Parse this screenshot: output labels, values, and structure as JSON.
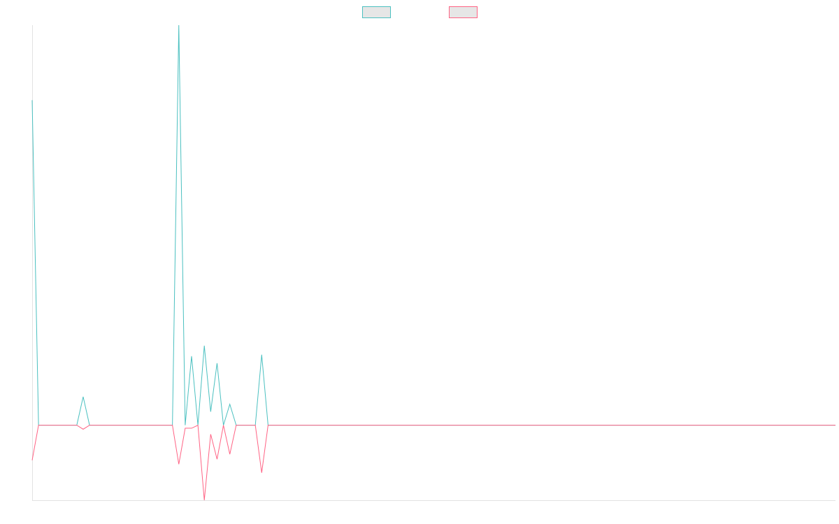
{
  "chart_data": {
    "type": "line",
    "title": "",
    "xlabel": "",
    "ylabel": "",
    "grid": false,
    "legend_position": "top-center",
    "x": [
      0,
      1,
      2,
      3,
      4,
      5,
      6,
      7,
      8,
      9,
      10,
      11,
      12,
      13,
      14,
      15,
      16,
      17,
      18,
      19,
      20,
      21,
      22,
      23,
      24,
      25,
      26,
      27,
      28,
      29,
      30,
      31,
      32,
      33,
      34,
      35,
      36,
      37,
      38,
      39,
      40,
      41,
      42,
      43,
      44,
      45,
      46,
      47,
      48,
      49,
      50,
      51,
      52,
      53,
      54,
      55,
      56,
      57,
      58,
      59,
      60,
      61,
      62,
      63,
      64,
      65,
      66,
      67,
      68,
      69,
      70,
      71,
      72,
      73,
      74,
      75,
      76,
      77,
      78,
      79,
      80,
      81,
      82,
      83,
      84,
      85,
      86,
      87,
      88,
      89,
      90,
      91,
      92,
      93,
      94,
      95,
      96,
      97,
      98,
      99,
      100,
      101,
      102,
      103,
      104,
      105,
      106,
      107,
      108,
      109,
      110,
      111,
      112,
      113,
      114,
      115,
      116,
      117,
      118,
      119,
      120,
      121,
      122,
      123,
      124,
      125,
      126
    ],
    "ylim": [
      -15,
      80
    ],
    "series": [
      {
        "color": "#4bc0c0",
        "values": [
          65,
          0,
          0,
          0,
          0,
          0,
          0,
          0,
          5.7,
          0,
          0,
          0,
          0,
          0,
          0,
          0,
          0,
          0,
          0,
          0,
          0,
          0,
          0,
          80,
          0,
          13.8,
          0,
          15.9,
          2.7,
          12.4,
          0,
          4.2,
          0,
          0,
          0,
          0,
          14.1,
          0,
          0,
          0,
          0,
          0,
          0,
          0,
          0,
          0,
          0,
          0,
          0,
          0,
          0,
          0,
          0,
          0,
          0,
          0,
          0,
          0,
          0,
          0,
          0,
          0,
          0,
          0,
          0,
          0,
          0,
          0,
          0,
          0,
          0,
          0,
          0,
          0,
          0,
          0,
          0,
          0,
          0,
          0,
          0,
          0,
          0,
          0,
          0,
          0,
          0,
          0,
          0,
          0,
          0,
          0,
          0,
          0,
          0,
          0,
          0,
          0,
          0,
          0,
          0,
          0,
          0,
          0,
          0,
          0,
          0,
          0,
          0,
          0,
          0,
          0,
          0,
          0,
          0,
          0,
          0,
          0,
          0,
          0,
          0,
          0,
          0,
          0,
          0,
          0,
          0
        ]
      },
      {
        "color": "#ff6384",
        "values": [
          -7,
          0,
          0,
          0,
          0,
          0,
          0,
          0,
          -0.8,
          0,
          0,
          0,
          0,
          0,
          0,
          0,
          0,
          0,
          0,
          0,
          0,
          0,
          0,
          -7.8,
          -0.6,
          -0.6,
          0,
          -15,
          -1.8,
          -6.8,
          0,
          -5.8,
          0,
          0,
          0,
          0,
          -9.5,
          0,
          0,
          0,
          0,
          0,
          0,
          0,
          0,
          0,
          0,
          0,
          0,
          0,
          0,
          0,
          0,
          0,
          0,
          0,
          0,
          0,
          0,
          0,
          0,
          0,
          0,
          0,
          0,
          0,
          0,
          0,
          0,
          0,
          0,
          0,
          0,
          0,
          0,
          0,
          0,
          0,
          0,
          0,
          0,
          0,
          0,
          0,
          0,
          0,
          0,
          0,
          0,
          0,
          0,
          0,
          0,
          0,
          0,
          0,
          0,
          0,
          0,
          0,
          0,
          0,
          0,
          0,
          0,
          0,
          0,
          0,
          0,
          0,
          0,
          0,
          0,
          0,
          0,
          0,
          0,
          0,
          0,
          0,
          0,
          0,
          0,
          0,
          0,
          0,
          0
        ]
      }
    ]
  }
}
